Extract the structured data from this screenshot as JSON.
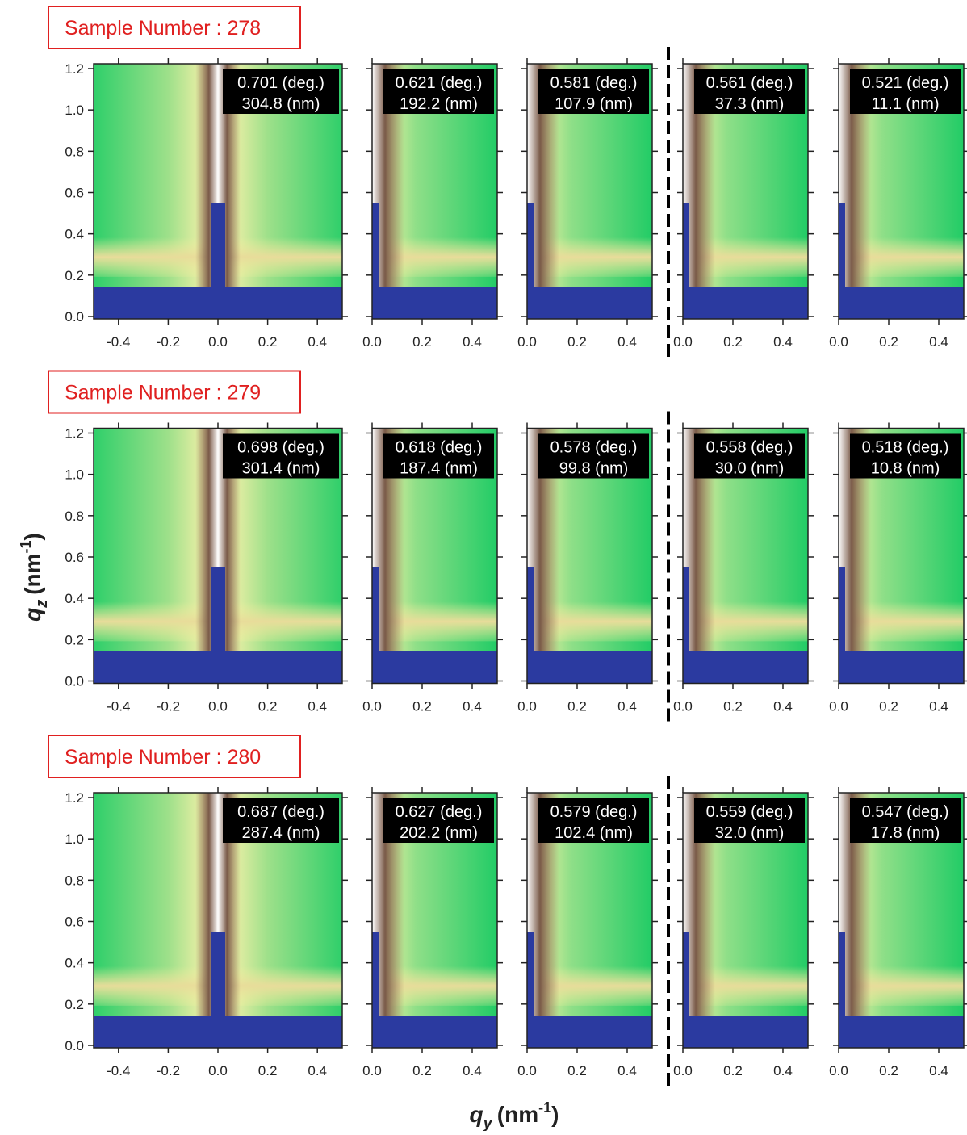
{
  "figure": {
    "y_label": {
      "symbol": "q",
      "subscript": "z",
      "unit": "(nm",
      "exponent": "-1",
      "close": ")"
    },
    "x_label": {
      "symbol": "q",
      "subscript": "y",
      "unit": "(nm",
      "exponent": "-1",
      "close": ")"
    },
    "ylim": [
      0,
      1.2
    ],
    "yticks": [
      {
        "value": 0,
        "label": "0.0"
      },
      0.2,
      0.4,
      0.6,
      0.8,
      {
        "value": 1,
        "label": "1.0"
      },
      1.2
    ],
    "wide_xlim": [
      -0.5,
      0.5
    ],
    "wide_xticks": [
      -0.4,
      -0.2,
      {
        "value": 0,
        "label": "0.0"
      },
      0.2,
      0.4
    ],
    "narrow_xlim": [
      0,
      0.5
    ],
    "narrow_xticks": [
      {
        "value": 0,
        "label": "0.0"
      },
      0.2,
      0.4
    ],
    "rows": [
      {
        "sample": "Sample Number : 278",
        "panels": [
          {
            "angle": "0.701 (deg.)",
            "thickness": "304.8 (nm)"
          },
          {
            "angle": "0.621 (deg.)",
            "thickness": "192.2 (nm)"
          },
          {
            "angle": "0.581 (deg.)",
            "thickness": "107.9 (nm)"
          },
          {
            "angle": "0.561 (deg.)",
            "thickness": "37.3 (nm)"
          },
          {
            "angle": "0.521 (deg.)",
            "thickness": "11.1 (nm)"
          }
        ]
      },
      {
        "sample": "Sample Number : 279",
        "panels": [
          {
            "angle": "0.698 (deg.)",
            "thickness": "301.4 (nm)"
          },
          {
            "angle": "0.618 (deg.)",
            "thickness": "187.4 (nm)"
          },
          {
            "angle": "0.578 (deg.)",
            "thickness": "99.8 (nm)"
          },
          {
            "angle": "0.558 (deg.)",
            "thickness": "30.0 (nm)"
          },
          {
            "angle": "0.518 (deg.)",
            "thickness": "10.8 (nm)"
          }
        ]
      },
      {
        "sample": "Sample Number : 280",
        "panels": [
          {
            "angle": "0.687 (deg.)",
            "thickness": "287.4 (nm)"
          },
          {
            "angle": "0.627 (deg.)",
            "thickness": "202.2 (nm)"
          },
          {
            "angle": "0.579 (deg.)",
            "thickness": "102.4 (nm)"
          },
          {
            "angle": "0.559 (deg.)",
            "thickness": "32.0 (nm)"
          },
          {
            "angle": "0.547 (deg.)",
            "thickness": "17.8 (nm)"
          }
        ]
      }
    ]
  }
}
